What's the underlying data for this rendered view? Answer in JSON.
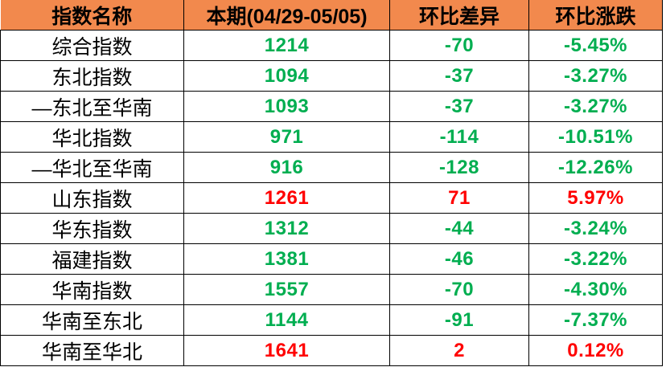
{
  "colors": {
    "header_bg": "#F2894D",
    "header_text": "#000000",
    "up": "#FF0000",
    "down": "#00AE50",
    "border": "#000000"
  },
  "chart_data": {
    "type": "table",
    "title": "",
    "columns": [
      "指数名称",
      "本期(04/29-05/05)",
      "环比差异",
      "环比涨跌"
    ],
    "rows": [
      {
        "name": "综合指数",
        "current": "1214",
        "diff": "-70",
        "pct": "-5.45%",
        "trend": "down"
      },
      {
        "name": "东北指数",
        "current": "1094",
        "diff": "-37",
        "pct": "-3.27%",
        "trend": "down"
      },
      {
        "name": "—东北至华南",
        "current": "1093",
        "diff": "-37",
        "pct": "-3.27%",
        "trend": "down"
      },
      {
        "name": "华北指数",
        "current": "971",
        "diff": "-114",
        "pct": "-10.51%",
        "trend": "down"
      },
      {
        "name": "—华北至华南",
        "current": "916",
        "diff": "-128",
        "pct": "-12.26%",
        "trend": "down"
      },
      {
        "name": "山东指数",
        "current": "1261",
        "diff": "71",
        "pct": "5.97%",
        "trend": "up"
      },
      {
        "name": "华东指数",
        "current": "1312",
        "diff": "-44",
        "pct": "-3.24%",
        "trend": "down"
      },
      {
        "name": "福建指数",
        "current": "1381",
        "diff": "-46",
        "pct": "-3.22%",
        "trend": "down"
      },
      {
        "name": "华南指数",
        "current": "1557",
        "diff": "-70",
        "pct": "-4.30%",
        "trend": "down"
      },
      {
        "name": "华南至东北",
        "current": "1144",
        "diff": "-91",
        "pct": "-7.37%",
        "trend": "down"
      },
      {
        "name": "华南至华北",
        "current": "1641",
        "diff": "2",
        "pct": "0.12%",
        "trend": "up"
      }
    ]
  }
}
